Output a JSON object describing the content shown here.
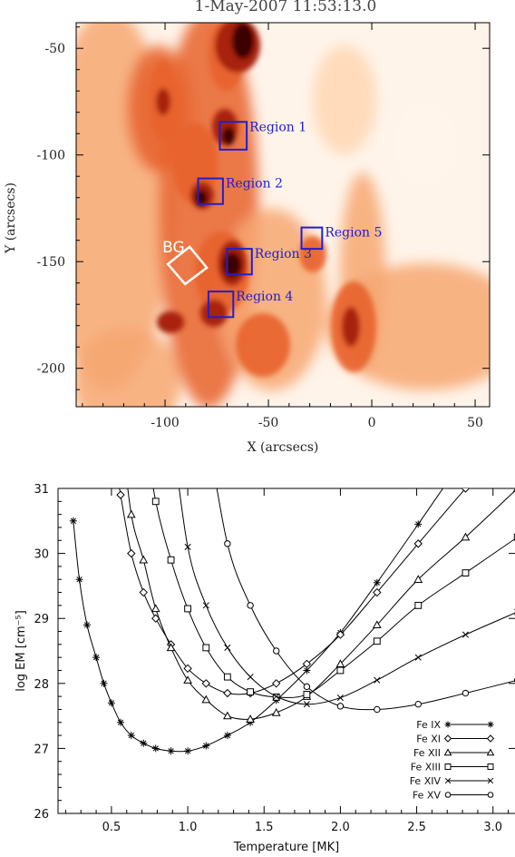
{
  "chart_data": [
    {
      "type": "heatmap",
      "title": "1-May-2007 11:53:13.0",
      "xlabel": "X (arcsecs)",
      "ylabel": "Y (arcsecs)",
      "xlim": [
        -143,
        57
      ],
      "ylim": [
        -218,
        -38
      ],
      "xticks": [
        -100,
        -50,
        0,
        50
      ],
      "xtick_labels": [
        "-100",
        "-50",
        "0",
        "50"
      ],
      "yticks": [
        -50,
        -100,
        -150,
        -200
      ],
      "ytick_labels": [
        "-50",
        "-100",
        "-150",
        "-200"
      ],
      "colormap": [
        "#fff4ea",
        "#ffd6b3",
        "#f7a772",
        "#e8622b",
        "#a8200a",
        "#3a0500"
      ],
      "regions": [
        {
          "label": "Region 1",
          "center": [
            -67,
            -91
          ],
          "size": 13
        },
        {
          "label": "Region 2",
          "center": [
            -78,
            -117
          ],
          "size": 12
        },
        {
          "label": "Region 3",
          "center": [
            -64,
            -150
          ],
          "size": 12
        },
        {
          "label": "Region 4",
          "center": [
            -73,
            -170
          ],
          "size": 12
        },
        {
          "label": "Region 5",
          "center": [
            -29,
            -139
          ],
          "size": 10
        }
      ],
      "background_region": {
        "label": "BG",
        "center": [
          -89,
          -152
        ]
      }
    },
    {
      "type": "line",
      "title": "",
      "xlabel": "Temperature [MK]",
      "ylabel": "log EM [cm⁻⁵]",
      "xlim": [
        0.15,
        3.15
      ],
      "ylim": [
        26,
        31
      ],
      "xticks": [
        0.5,
        1.0,
        1.5,
        2.0,
        2.5,
        3.0
      ],
      "xtick_labels": [
        "0.5",
        "1.0",
        "1.5",
        "2.0",
        "2.5",
        "3.0"
      ],
      "yticks": [
        26,
        27,
        28,
        29,
        30,
        31
      ],
      "ytick_labels": [
        "26",
        "27",
        "28",
        "29",
        "30",
        "31"
      ],
      "legend_position": "bottom-right",
      "series": [
        {
          "name": "Fe IX",
          "marker": "asterisk",
          "x": [
            0.25,
            0.29,
            0.34,
            0.4,
            0.45,
            0.5,
            0.56,
            0.63,
            0.71,
            0.79,
            0.89,
            1.0,
            1.12,
            1.26,
            1.41,
            1.58,
            1.78,
            2.0,
            2.24,
            2.51,
            2.82,
            3.16
          ],
          "y": [
            30.5,
            29.6,
            28.9,
            28.4,
            28.0,
            27.7,
            27.4,
            27.2,
            27.08,
            27.0,
            26.96,
            26.96,
            27.04,
            27.2,
            27.4,
            27.74,
            28.2,
            28.78,
            29.55,
            30.45,
            31.5,
            32.6
          ]
        },
        {
          "name": "Fe XI",
          "marker": "diamond",
          "x": [
            0.5,
            0.56,
            0.63,
            0.71,
            0.79,
            0.89,
            1.0,
            1.12,
            1.26,
            1.41,
            1.58,
            1.78,
            2.0,
            2.24,
            2.51,
            2.82,
            3.16
          ],
          "y": [
            31.8,
            30.9,
            30.0,
            29.4,
            29.0,
            28.6,
            28.23,
            28.0,
            27.85,
            27.85,
            28.0,
            28.3,
            28.75,
            29.4,
            30.15,
            31.0,
            31.9
          ]
        },
        {
          "name": "Fe XII",
          "marker": "triangle",
          "x": [
            0.56,
            0.63,
            0.71,
            0.79,
            0.89,
            1.0,
            1.12,
            1.26,
            1.41,
            1.58,
            1.78,
            2.0,
            2.24,
            2.51,
            2.82,
            3.16
          ],
          "y": [
            32.0,
            30.6,
            29.9,
            29.15,
            28.55,
            28.05,
            27.75,
            27.5,
            27.45,
            27.55,
            27.8,
            28.3,
            28.9,
            29.6,
            30.25,
            31.0
          ]
        },
        {
          "name": "Fe XIII",
          "marker": "square",
          "x": [
            0.71,
            0.79,
            0.89,
            1.0,
            1.12,
            1.26,
            1.41,
            1.58,
            1.78,
            2.0,
            2.24,
            2.51,
            2.82,
            3.16
          ],
          "y": [
            32.0,
            30.8,
            29.9,
            29.15,
            28.55,
            28.1,
            27.87,
            27.79,
            27.83,
            28.2,
            28.65,
            29.2,
            29.7,
            30.25
          ]
        },
        {
          "name": "Fe XIV",
          "marker": "cross",
          "x": [
            0.89,
            1.0,
            1.12,
            1.26,
            1.41,
            1.58,
            1.78,
            2.0,
            2.24,
            2.51,
            2.82,
            3.16
          ],
          "y": [
            32.0,
            30.1,
            29.2,
            28.55,
            28.1,
            27.8,
            27.68,
            27.78,
            28.05,
            28.4,
            28.75,
            29.1
          ]
        },
        {
          "name": "Fe XV",
          "marker": "circle",
          "x": [
            1.12,
            1.26,
            1.41,
            1.58,
            1.78,
            2.0,
            2.24,
            2.51,
            2.82,
            3.16
          ],
          "y": [
            32.0,
            30.15,
            29.2,
            28.5,
            27.95,
            27.65,
            27.6,
            27.68,
            27.85,
            28.05
          ]
        }
      ]
    }
  ]
}
